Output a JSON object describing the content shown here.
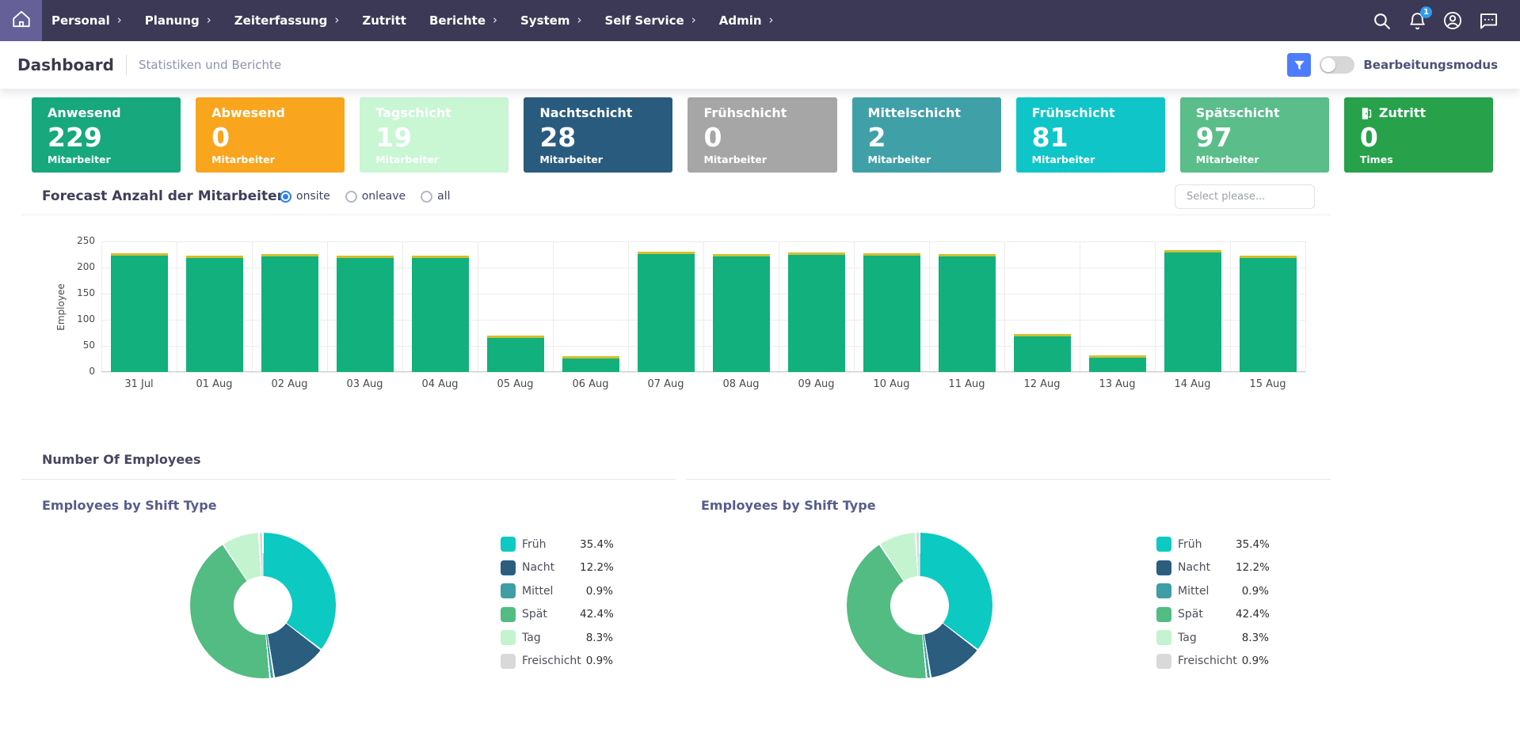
{
  "nav": {
    "items": [
      {
        "label": "Personal",
        "chevron": true
      },
      {
        "label": "Planung",
        "chevron": true
      },
      {
        "label": "Zeiterfassung",
        "chevron": true
      },
      {
        "label": "Zutritt",
        "chevron": false
      },
      {
        "label": "Berichte",
        "chevron": true
      },
      {
        "label": "System",
        "chevron": true
      },
      {
        "label": "Self Service",
        "chevron": true
      },
      {
        "label": "Admin",
        "chevron": true
      }
    ],
    "notification_count": "1",
    "colors": {
      "bar": "#3b3955",
      "home_tile": "#656198",
      "badge": "#2e9bf0"
    }
  },
  "header": {
    "title": "Dashboard",
    "subtitle": "Statistiken und Berichte",
    "edit_mode_label": "Bearbeitungsmodus",
    "edit_mode_on": false,
    "filter_button_color": "#4d7cfe"
  },
  "kpi_cards": [
    {
      "label": "Anwesend",
      "value": "229",
      "sublabel": "Mitarbeiter",
      "bg": "#17a87d"
    },
    {
      "label": "Abwesend",
      "value": "0",
      "sublabel": "Mitarbeiter",
      "bg": "#f9a51e"
    },
    {
      "label": "Tagschicht",
      "value": "19",
      "sublabel": "Mitarbeiter",
      "bg": "#c9f6d3"
    },
    {
      "label": "Nachtschicht",
      "value": "28",
      "sublabel": "Mitarbeiter",
      "bg": "#295b7e"
    },
    {
      "label": "Frühschicht",
      "value": "0",
      "sublabel": "Mitarbeiter",
      "bg": "#a6a6a6"
    },
    {
      "label": "Mittelschicht",
      "value": "2",
      "sublabel": "Mitarbeiter",
      "bg": "#40a0a8"
    },
    {
      "label": "Frühschicht",
      "value": "81",
      "sublabel": "Mitarbeiter",
      "bg": "#10c5c8"
    },
    {
      "label": "Spätschicht",
      "value": "97",
      "sublabel": "Mitarbeiter",
      "bg": "#5abd8a"
    },
    {
      "label": "Zutritt",
      "value": "0",
      "sublabel": "Times",
      "bg": "#27a24b",
      "icon": "door-exit-icon"
    }
  ],
  "forecast": {
    "title": "Forecast Anzahl der Mitarbeiter",
    "radios": [
      {
        "label": "onsite",
        "selected": true
      },
      {
        "label": "onleave",
        "selected": false
      },
      {
        "label": "all",
        "selected": false
      }
    ],
    "select_placeholder": "Select please..."
  },
  "sections": {
    "employees_heading": "Number Of Employees"
  },
  "chart_data": [
    {
      "type": "bar",
      "title": "Forecast Anzahl der Mitarbeiter",
      "categories": [
        "31 Jul",
        "01 Aug",
        "02 Aug",
        "03 Aug",
        "04 Aug",
        "05 Aug",
        "06 Aug",
        "07 Aug",
        "08 Aug",
        "09 Aug",
        "10 Aug",
        "11 Aug",
        "12 Aug",
        "13 Aug",
        "14 Aug",
        "15 Aug"
      ],
      "values": [
        228,
        223,
        226,
        223,
        222,
        70,
        30,
        230,
        226,
        229,
        228,
        226,
        72,
        32,
        233,
        223
      ],
      "bar_color": "#12b07d",
      "cap_color": "#d2bf2e",
      "xlabel": "",
      "ylabel": "Employee",
      "ylim": [
        0,
        250
      ],
      "yticks": [
        0,
        50,
        100,
        150,
        200,
        250
      ],
      "grid": true
    },
    {
      "type": "pie",
      "title": "Employees by Shift Type",
      "labels": [
        "Früh",
        "Nacht",
        "Mittel",
        "Spät",
        "Tag",
        "Freischicht"
      ],
      "values": [
        35.4,
        12.2,
        0.9,
        42.4,
        8.3,
        0.9
      ],
      "value_suffix": "%",
      "colors": [
        "#0cc9c2",
        "#2a5d7e",
        "#3f9da5",
        "#52bc82",
        "#c4f3cf",
        "#d9d9d9"
      ],
      "donut": true,
      "legend_position": "right"
    },
    {
      "type": "pie",
      "title": "Employees by Shift Type",
      "labels": [
        "Früh",
        "Nacht",
        "Mittel",
        "Spät",
        "Tag",
        "Freischicht"
      ],
      "values": [
        35.4,
        12.2,
        0.9,
        42.4,
        8.3,
        0.9
      ],
      "value_suffix": "%",
      "colors": [
        "#0cc9c2",
        "#2a5d7e",
        "#3f9da5",
        "#52bc82",
        "#c4f3cf",
        "#d9d9d9"
      ],
      "donut": true,
      "legend_position": "right"
    }
  ]
}
